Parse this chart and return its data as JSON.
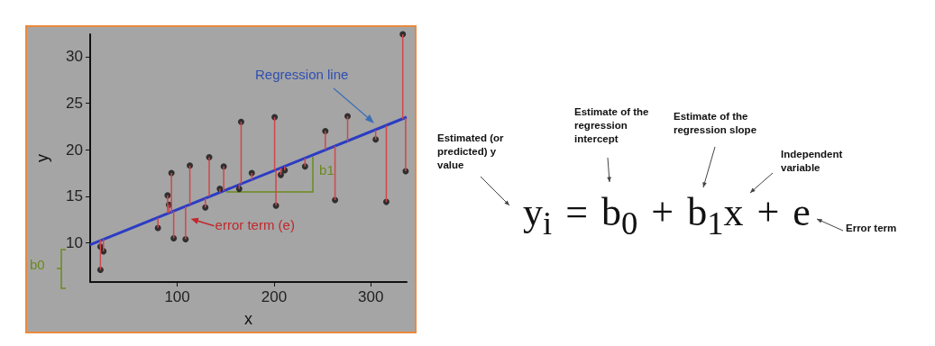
{
  "chart_data": {
    "type": "scatter",
    "xlabel": "x",
    "ylabel": "y",
    "xlim": [
      10,
      337
    ],
    "xticks": [
      100,
      200,
      300
    ],
    "ylim": [
      5.8,
      32.4
    ],
    "yticks": [
      10,
      15,
      20,
      25,
      30
    ],
    "grid": false,
    "marker": "circle",
    "annotations": [
      "Regression line",
      {
        "text": "error term (e)",
        "x": 113,
        "y": 12.5
      },
      "b0",
      {
        "text": "b1",
        "x": 243,
        "y": 19.5
      },
      "y$_{i}$ = b$_{0}$ + b$_{1}$x + e",
      "Estimated  (or predicted) y value",
      "Estimate of the regression intercept",
      "Estimate of the regression slope",
      "Independent variable",
      "Error term"
    ],
    "series": [
      {
        "color": "#111111",
        "x": [
          20.6,
          20.6,
          23.7,
          80,
          90,
          91.4,
          94,
          96.3,
          108.6,
          113,
          129,
          133,
          144,
          148,
          164,
          166,
          177,
          200.6,
          202,
          207,
          211,
          232,
          253,
          263,
          276,
          305,
          316,
          333,
          336
        ],
        "values": [
          7.1,
          9.6,
          9.1,
          11.6,
          15.1,
          14.1,
          17.5,
          10.5,
          10.4,
          18.3,
          13.8,
          19.2,
          15.8,
          18.2,
          15.8,
          23.0,
          17.5,
          23.5,
          14.0,
          17.3,
          17.8,
          18.2,
          22.0,
          14.6,
          23.6,
          21.1,
          14.4,
          32.4,
          17.7
        ],
        "errors": [
          [
            7.1,
            10.3
          ],
          [
            9.6,
            10.3
          ],
          [
            9.1,
            10.4
          ],
          [
            11.6,
            12.7
          ],
          [
            13.2,
            15.1
          ],
          [
            13.2,
            14.1
          ],
          [
            13.3,
            17.5
          ],
          [
            10.5,
            13.4
          ],
          [
            10.4,
            13.9
          ],
          [
            14.1,
            18.3
          ],
          [
            13.8,
            14.8
          ],
          [
            15.0,
            19.2
          ],
          [
            15.4,
            15.8
          ],
          [
            15.6,
            18.2
          ],
          [
            15.8,
            16.3
          ],
          [
            16.3,
            23.0
          ],
          [
            16.8,
            17.5
          ],
          [
            17.8,
            23.5
          ],
          [
            14.0,
            17.8
          ],
          [
            17.3,
            18.0
          ],
          [
            17.8,
            18.2
          ],
          [
            18.2,
            19.1
          ],
          [
            20.0,
            22.0
          ],
          [
            14.6,
            20.4
          ],
          [
            20.9,
            23.6
          ],
          [
            21.1,
            22.1
          ],
          [
            14.4,
            22.6
          ],
          [
            23.3,
            32.4
          ],
          [
            17.7,
            23.4
          ]
        ]
      },
      {
        "type": "line",
        "color": "#2b3cc4",
        "marker": "none",
        "x": [
          10,
          337
        ],
        "values": [
          9.8,
          23.5
        ]
      }
    ]
  }
}
